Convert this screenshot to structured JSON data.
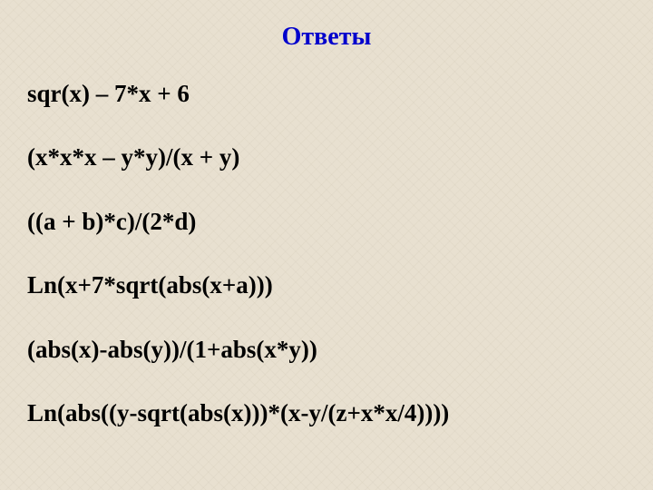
{
  "title": "Ответы",
  "expressions": [
    "sqr(x) – 7*x + 6",
    "(x*x*x – y*y)/(x + y)",
    "((a + b)*c)/(2*d)",
    "Ln(x+7*sqrt(abs(x+a)))",
    "(abs(x)-abs(y))/(1+abs(x*y))",
    "Ln(abs((y-sqrt(abs(x)))*(x-y/(z+x*x/4))))"
  ],
  "styles": {
    "title_color": "#0000cc",
    "text_color": "#000000",
    "background_color": "#e8e0d0",
    "title_fontsize": 28,
    "expression_fontsize": 27,
    "font_family": "Times New Roman",
    "font_weight": "bold"
  }
}
